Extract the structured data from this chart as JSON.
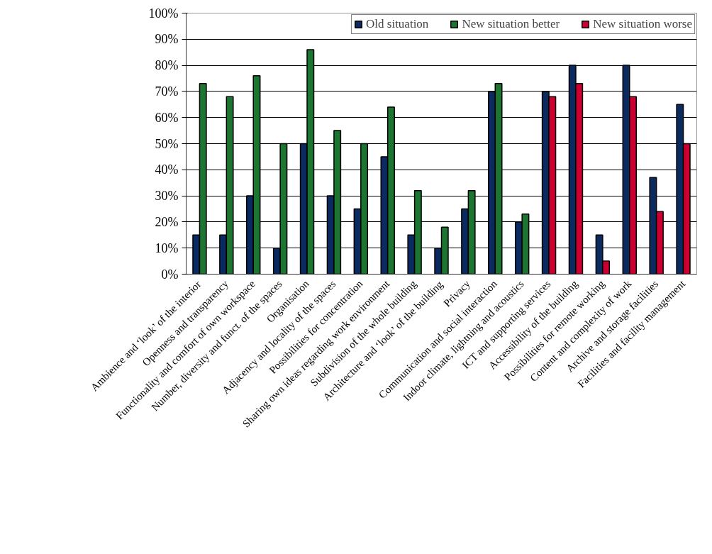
{
  "chart_data": {
    "type": "bar",
    "categories": [
      "Ambience and ‘look’ of the interior",
      "Openness and transparency",
      "Functionality and comfort of own workspace",
      "Number, diversity and funct. of the spaces",
      "Organisation",
      "Adjacency and locality of the spaces",
      "Possibilities for concentration",
      "Sharing own ideas regarding work environment",
      "Subdivision of the whole building",
      "Architecture and ‘look’ of the building",
      "Privacy",
      "Communication and social interaction",
      "Indoor climate, lightning and acoustics",
      "ICT and supporting services",
      "Accessibility of the building",
      "Possibilities for remote working",
      "Content and complexity of work",
      "Archive and storage facilities",
      "Facilities and facility management"
    ],
    "series": [
      {
        "name": "Old situation",
        "color": "#0b2a60",
        "values": [
          15,
          15,
          30,
          10,
          50,
          30,
          25,
          45,
          15,
          10,
          25,
          70,
          20,
          70,
          80,
          15,
          80,
          37,
          65
        ]
      },
      {
        "name": "New situation better",
        "color": "#1c7530",
        "values": [
          73,
          68,
          76,
          50,
          86,
          55,
          50,
          64,
          32,
          18,
          32,
          73,
          23,
          null,
          null,
          null,
          null,
          null,
          null
        ]
      },
      {
        "name": "New situation worse",
        "color": "#cc0030",
        "values": [
          null,
          null,
          null,
          null,
          null,
          null,
          null,
          null,
          null,
          null,
          null,
          null,
          null,
          68,
          73,
          5,
          68,
          24,
          50
        ]
      }
    ],
    "ylim": [
      0,
      100
    ],
    "yticks": [
      {
        "value": 0,
        "label": "0%"
      },
      {
        "value": 10,
        "label": "10%"
      },
      {
        "value": 20,
        "label": "20%"
      },
      {
        "value": 30,
        "label": "30%"
      },
      {
        "value": 40,
        "label": "40%"
      },
      {
        "value": 50,
        "label": "50%"
      },
      {
        "value": 60,
        "label": "60%"
      },
      {
        "value": 70,
        "label": "70%"
      },
      {
        "value": 80,
        "label": "80%"
      },
      {
        "value": 90,
        "label": "90%"
      },
      {
        "value": 100,
        "label": "100%"
      }
    ],
    "grid": "y",
    "legend": "top right"
  }
}
